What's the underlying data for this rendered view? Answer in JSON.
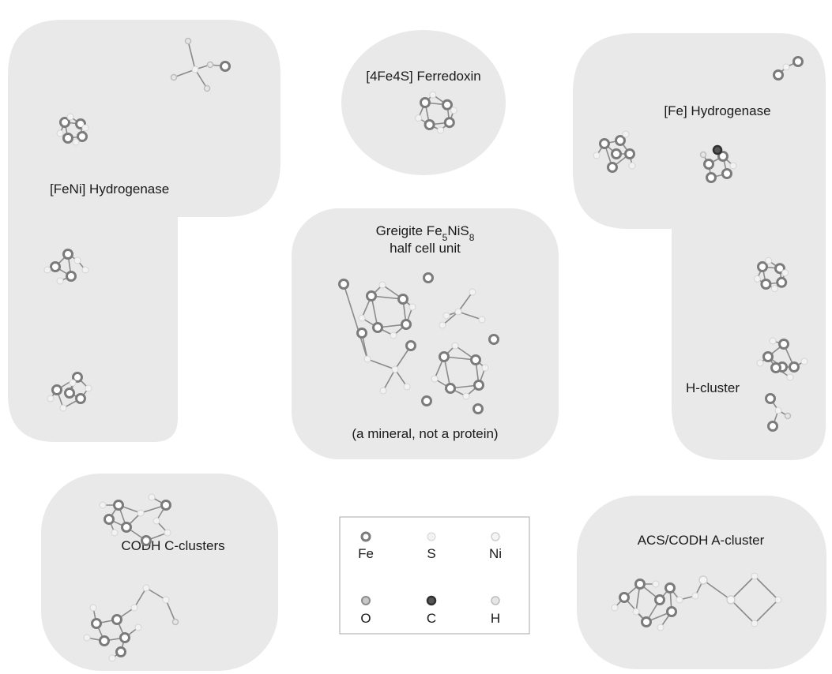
{
  "colors": {
    "region_fill": "#e9e9e9",
    "background": "#ffffff",
    "text": "#1a1a1a",
    "bond": "#8a8a8a"
  },
  "regions": {
    "feni": {
      "label": "[FeNi] Hydrogenase"
    },
    "ferredoxin": {
      "label": "[4Fe4S] Ferredoxin"
    },
    "fe_hydrogenase": {
      "label": "[Fe] Hydrogenase",
      "sublabel": "H-cluster"
    },
    "greigite": {
      "title_prefix": "Greigite Fe",
      "sub1": "5",
      "mid": "NiS",
      "sub2": "8",
      "line2": "half cell unit",
      "note": "(a mineral, not a protein)"
    },
    "codh": {
      "label": "CODH C-clusters"
    },
    "acs": {
      "label": "ACS/CODH A-cluster"
    }
  },
  "legend": {
    "items": [
      {
        "symbol": "Fe",
        "atom": "fe"
      },
      {
        "symbol": "S",
        "atom": "s"
      },
      {
        "symbol": "Ni",
        "atom": "ni"
      },
      {
        "symbol": "O",
        "atom": "o"
      },
      {
        "symbol": "C",
        "atom": "c"
      },
      {
        "symbol": "H",
        "atom": "h"
      }
    ]
  }
}
